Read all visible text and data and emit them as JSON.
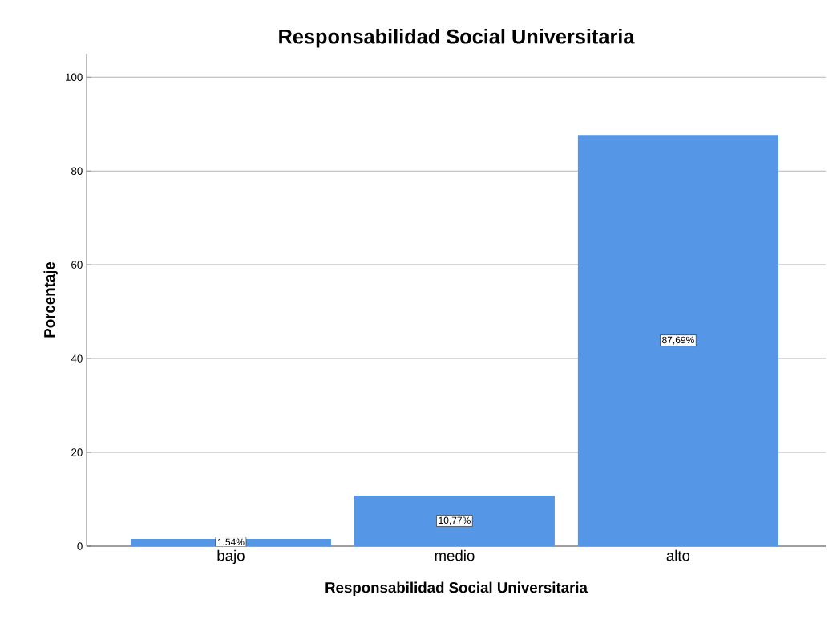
{
  "chart_data": {
    "type": "bar",
    "title": "Responsabilidad Social Universitaria",
    "xlabel": "Responsabilidad Social Universitaria",
    "ylabel": "Porcentaje",
    "categories": [
      "bajo",
      "medio",
      "alto"
    ],
    "values": [
      1.54,
      10.77,
      87.69
    ],
    "value_labels": [
      "1,54%",
      "10,77%",
      "87,69%"
    ],
    "color": "#5596e6",
    "ylim": [
      0,
      105
    ],
    "yticks": [
      0,
      20,
      40,
      60,
      80,
      100
    ],
    "grid": "y"
  }
}
